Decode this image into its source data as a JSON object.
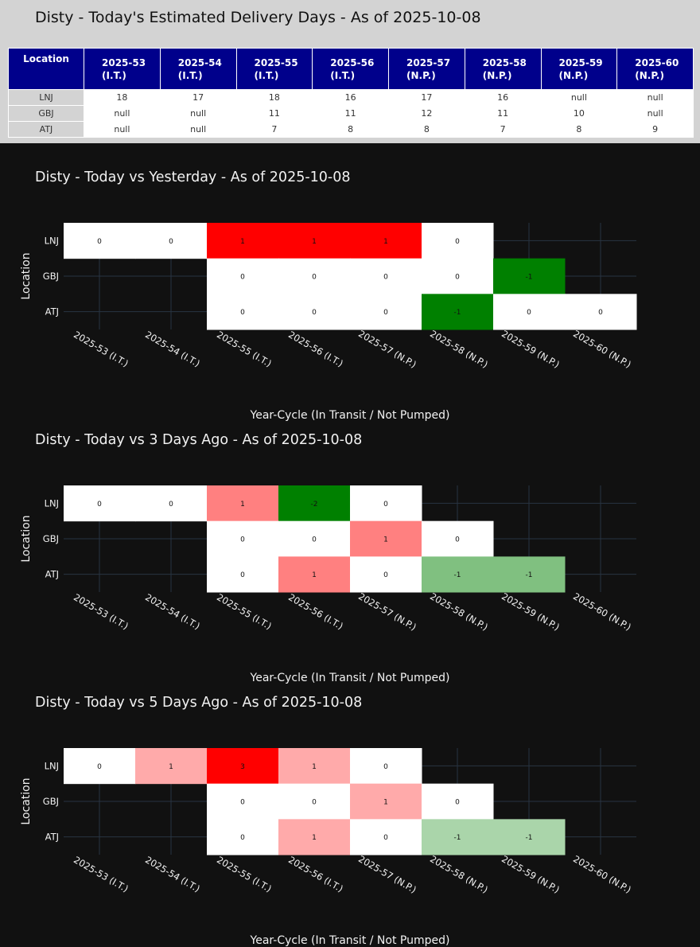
{
  "summary": {
    "title": "Disty - Today's Estimated Delivery Days - As of 2025-10-08",
    "header_location": "Location",
    "columns": [
      {
        "cycle": "2025-53",
        "status": "(I.T.)"
      },
      {
        "cycle": "2025-54",
        "status": "(I.T.)"
      },
      {
        "cycle": "2025-55",
        "status": "(I.T.)"
      },
      {
        "cycle": "2025-56",
        "status": "(I.T.)"
      },
      {
        "cycle": "2025-57",
        "status": "(N.P.)"
      },
      {
        "cycle": "2025-58",
        "status": "(N.P.)"
      },
      {
        "cycle": "2025-59",
        "status": "(N.P.)"
      },
      {
        "cycle": "2025-60",
        "status": "(N.P.)"
      }
    ],
    "rows": [
      {
        "location": "LNJ",
        "values": [
          "18",
          "17",
          "18",
          "16",
          "17",
          "16",
          "null",
          "null"
        ]
      },
      {
        "location": "GBJ",
        "values": [
          "null",
          "null",
          "11",
          "11",
          "12",
          "11",
          "10",
          "null"
        ]
      },
      {
        "location": "ATJ",
        "values": [
          "null",
          "null",
          "7",
          "8",
          "8",
          "7",
          "8",
          "9"
        ]
      }
    ],
    "colors": {
      "header_bg": "#00008b",
      "location_bg": "#d3d3d3",
      "panel_bg": "#d3d3d3"
    }
  },
  "chart_data": [
    {
      "type": "heatmap",
      "title": "Disty - Today vs Yesterday - As of 2025-10-08",
      "xlabel": "Year-Cycle (In Transit / Not Pumped)",
      "ylabel": "Location",
      "x": [
        "2025-53 (I.T.)",
        "2025-54 (I.T.)",
        "2025-55 (I.T.)",
        "2025-56 (I.T.)",
        "2025-57 (N.P.)",
        "2025-58 (N.P.)",
        "2025-59 (N.P.)",
        "2025-60 (N.P.)"
      ],
      "y": [
        "LNJ",
        "GBJ",
        "ATJ"
      ],
      "z": [
        [
          0,
          0,
          1,
          1,
          1,
          0,
          null,
          null
        ],
        [
          null,
          null,
          0,
          0,
          0,
          0,
          -1,
          null
        ],
        [
          null,
          null,
          0,
          0,
          0,
          -1,
          0,
          0
        ]
      ],
      "colorscale": {
        "negative": "#008000",
        "zero": "#ffffff",
        "positive": "#ff0000"
      },
      "zmax": 1,
      "grid": true
    },
    {
      "type": "heatmap",
      "title": "Disty - Today vs 3 Days Ago - As of 2025-10-08",
      "xlabel": "Year-Cycle (In Transit / Not Pumped)",
      "ylabel": "Location",
      "x": [
        "2025-53 (I.T.)",
        "2025-54 (I.T.)",
        "2025-55 (I.T.)",
        "2025-56 (I.T.)",
        "2025-57 (N.P.)",
        "2025-58 (N.P.)",
        "2025-59 (N.P.)",
        "2025-60 (N.P.)"
      ],
      "y": [
        "LNJ",
        "GBJ",
        "ATJ"
      ],
      "z": [
        [
          0,
          0,
          1,
          -2,
          0,
          null,
          null,
          null
        ],
        [
          null,
          null,
          0,
          0,
          1,
          0,
          null,
          null
        ],
        [
          null,
          null,
          0,
          1,
          0,
          -1,
          -1,
          null
        ]
      ],
      "colorscale": {
        "negative": "#008000",
        "zero": "#ffffff",
        "positive": "#ff0000"
      },
      "zmax": 2,
      "grid": true
    },
    {
      "type": "heatmap",
      "title": "Disty - Today vs 5 Days Ago - As of 2025-10-08",
      "xlabel": "Year-Cycle (In Transit / Not Pumped)",
      "ylabel": "Location",
      "x": [
        "2025-53 (I.T.)",
        "2025-54 (I.T.)",
        "2025-55 (I.T.)",
        "2025-56 (I.T.)",
        "2025-57 (N.P.)",
        "2025-58 (N.P.)",
        "2025-59 (N.P.)",
        "2025-60 (N.P.)"
      ],
      "y": [
        "LNJ",
        "GBJ",
        "ATJ"
      ],
      "z": [
        [
          0,
          1,
          3,
          1,
          0,
          null,
          null,
          null
        ],
        [
          null,
          null,
          0,
          0,
          1,
          0,
          null,
          null
        ],
        [
          null,
          null,
          0,
          1,
          0,
          -1,
          -1,
          null
        ]
      ],
      "colorscale": {
        "negative": "#008000",
        "zero": "#ffffff",
        "positive": "#ff0000"
      },
      "zmax": 3,
      "grid": true
    }
  ]
}
